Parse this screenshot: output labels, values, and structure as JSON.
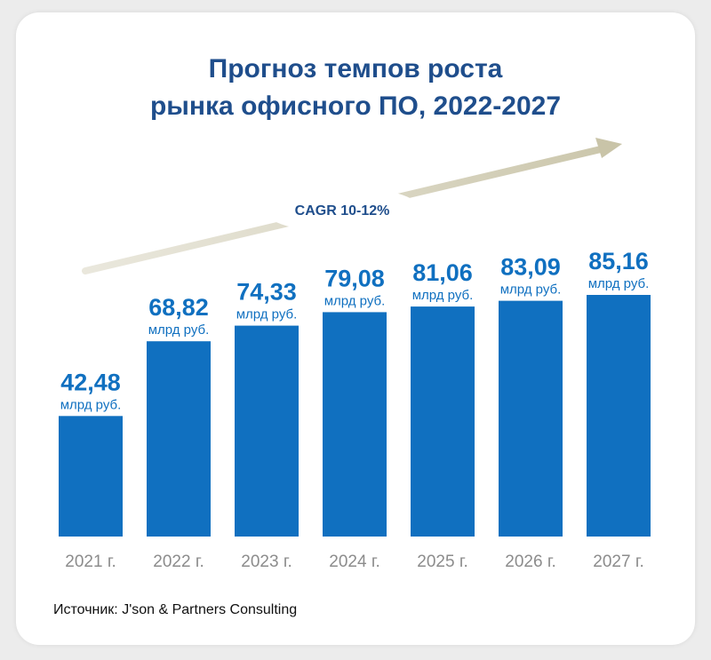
{
  "chart_data": {
    "type": "bar",
    "title_line1": "Прогноз темпов роста",
    "title_line2": "рынка офисного ПО, 2022-2027",
    "categories": [
      "2021 г.",
      "2022 г.",
      "2023 г.",
      "2024 г.",
      "2025 г.",
      "2026 г.",
      "2027 г."
    ],
    "values": [
      42.48,
      68.82,
      74.33,
      79.08,
      81.06,
      83.09,
      85.16
    ],
    "value_labels": [
      "42,48",
      "68,82",
      "74,33",
      "79,08",
      "81,06",
      "83,09",
      "85,16"
    ],
    "unit_label": "млрд руб.",
    "annotation": "CAGR 10-12%",
    "ylim": [
      0,
      85.16
    ],
    "grid": false,
    "colors": {
      "bar": "#1070c0",
      "value_text": "#1070c0",
      "tick_text": "#8c8c8c",
      "arrow": "#d8d4c0",
      "title": "#1f4e8c"
    }
  },
  "source_text": "Источник: J'son & Partners Consulting"
}
